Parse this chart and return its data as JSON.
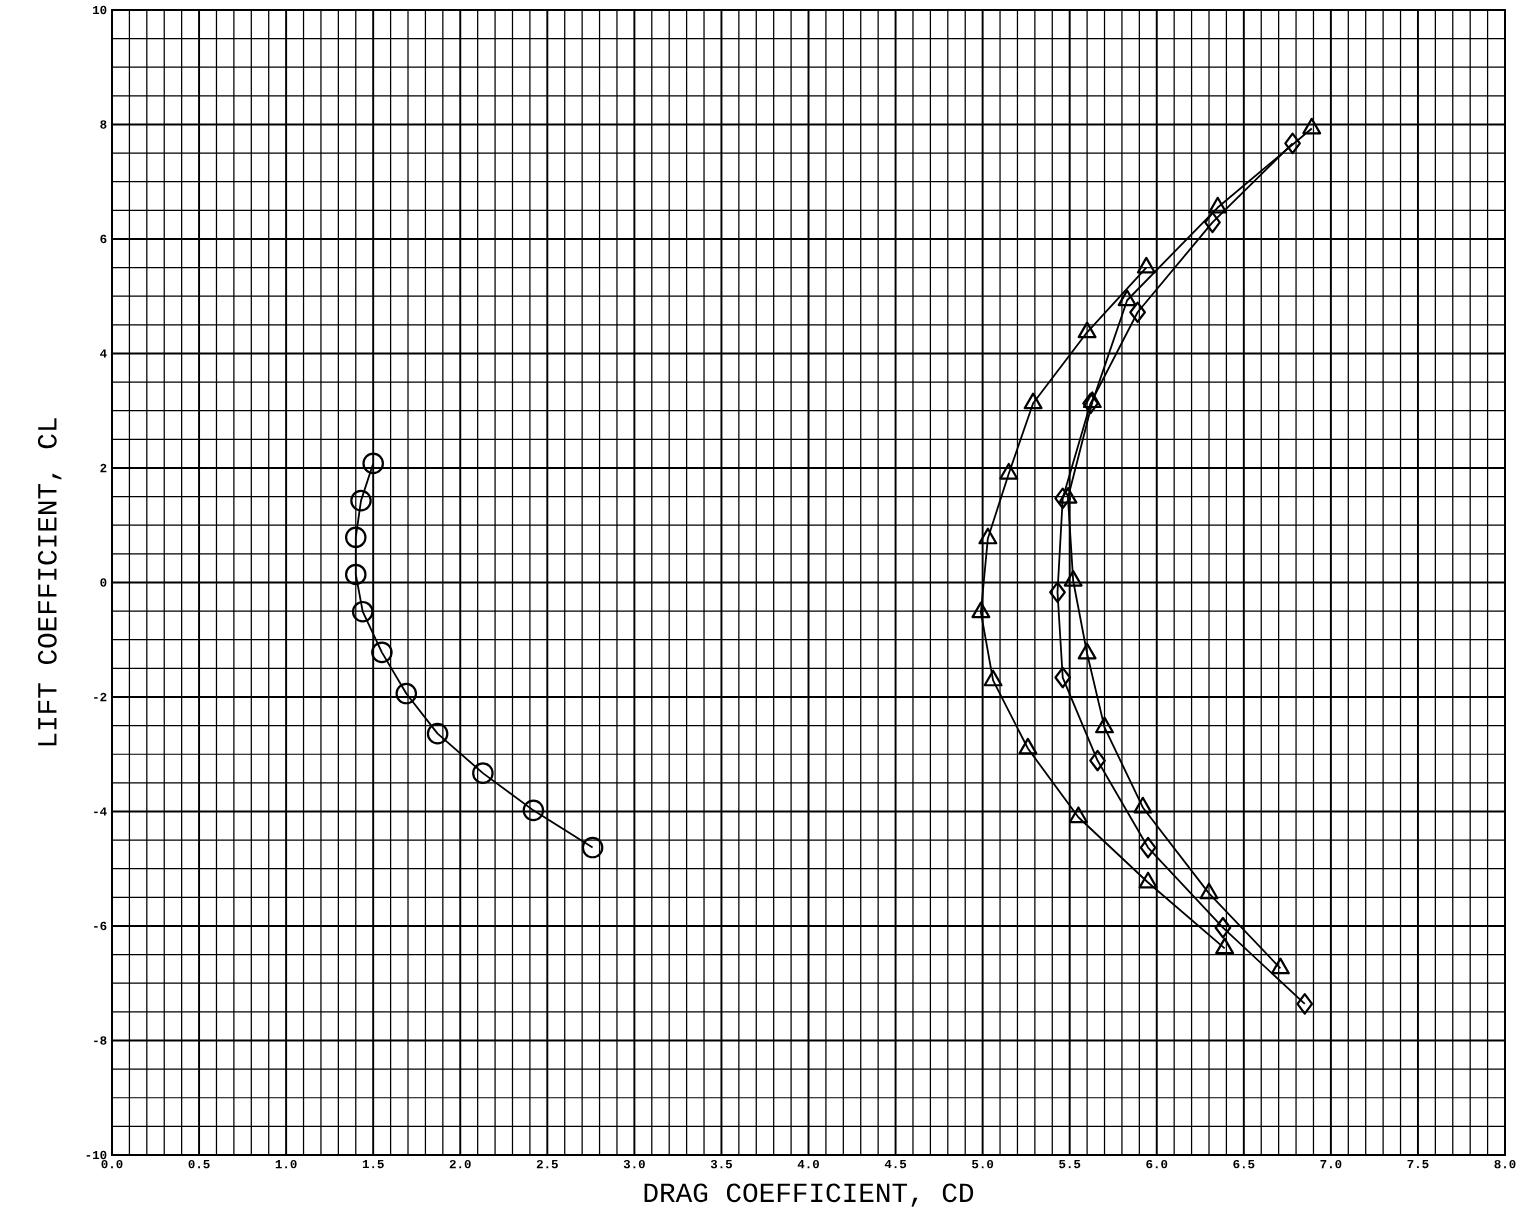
{
  "chart_data": {
    "type": "line",
    "xlabel": "DRAG COEFFICIENT, CD",
    "ylabel": "LIFT COEFFICIENT, CL",
    "xlim": [
      0,
      8
    ],
    "ylim": [
      -10,
      10
    ],
    "xticks": [
      {
        "value": 0,
        "label": "0.0"
      },
      {
        "value": 0.5,
        "label": "0.5"
      },
      {
        "value": 1,
        "label": "1.0"
      },
      {
        "value": 1.5,
        "label": "1.5"
      },
      {
        "value": 2,
        "label": "2.0"
      },
      {
        "value": 2.5,
        "label": "2.5"
      },
      {
        "value": 3,
        "label": "3.0"
      },
      {
        "value": 3.5,
        "label": "3.5"
      },
      {
        "value": 4,
        "label": "4.0"
      },
      {
        "value": 4.5,
        "label": "4.5"
      },
      {
        "value": 5,
        "label": "5.0"
      },
      {
        "value": 5.5,
        "label": "5.5"
      },
      {
        "value": 6,
        "label": "6.0"
      },
      {
        "value": 6.5,
        "label": "6.5"
      },
      {
        "value": 7,
        "label": "7.0"
      },
      {
        "value": 7.5,
        "label": "7.5"
      },
      {
        "value": 8,
        "label": "8.0"
      }
    ],
    "yticks": [
      -10,
      -8,
      -6,
      -4,
      -2,
      0,
      2,
      4,
      6,
      8,
      10
    ],
    "grid": true,
    "line_style": "solid",
    "series": [
      {
        "color": "#000000",
        "marker": "circle",
        "x": [
          1.5,
          1.43,
          1.4,
          1.4,
          1.44,
          1.55,
          1.69,
          1.87,
          2.13,
          2.42,
          2.76
        ],
        "values": [
          2.08,
          1.43,
          0.79,
          0.14,
          -0.51,
          -1.22,
          -1.94,
          -2.64,
          -3.33,
          -3.98,
          -4.63
        ]
      },
      {
        "color": "#000000",
        "marker": "triangle",
        "x": [
          5.94,
          5.6,
          5.29,
          5.15,
          5.03,
          4.99,
          5.06,
          5.26,
          5.55,
          5.95,
          6.39
        ],
        "values": [
          5.5,
          4.37,
          3.13,
          1.9,
          0.77,
          -0.52,
          -1.71,
          -2.9,
          -4.1,
          -5.24,
          -6.39
        ]
      },
      {
        "color": "#000000",
        "marker": "diamond",
        "x": [
          6.78,
          6.32,
          5.89,
          5.62,
          5.46,
          5.43,
          5.46,
          5.66,
          5.95,
          6.38,
          6.85
        ],
        "values": [
          7.67,
          6.29,
          4.72,
          3.13,
          1.47,
          -0.17,
          -1.66,
          -3.11,
          -4.63,
          -6.03,
          -7.36
        ]
      },
      {
        "color": "#000000",
        "marker": "triangle",
        "x": [
          6.89,
          6.35,
          5.83,
          5.63,
          5.49,
          5.52,
          5.6,
          5.7,
          5.92,
          6.3,
          6.71
        ],
        "values": [
          7.93,
          6.55,
          4.93,
          3.15,
          1.48,
          0.03,
          -1.24,
          -2.53,
          -3.93,
          -5.43,
          -6.74
        ]
      }
    ]
  }
}
